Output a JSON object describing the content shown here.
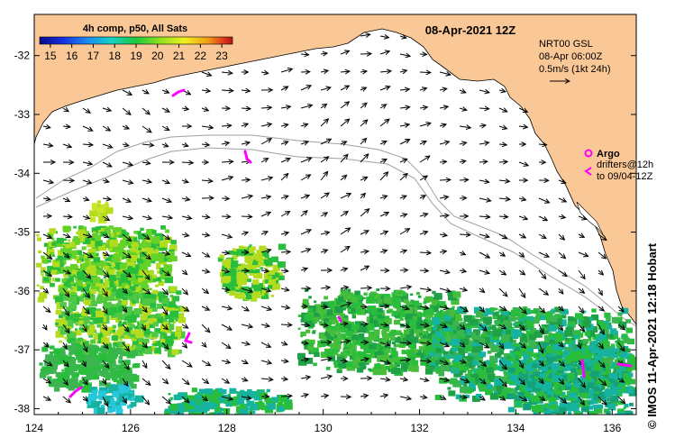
{
  "header": {
    "date_label": "08-Apr-2021 12Z"
  },
  "colorbar": {
    "title": "4h comp, p50, All Sats",
    "ticks": [
      "15",
      "16",
      "17",
      "18",
      "19",
      "20",
      "21",
      "22",
      "23"
    ],
    "range": [
      14.5,
      23.5
    ],
    "colors": [
      "#0a0a8c",
      "#1530e0",
      "#1c8cf0",
      "#16d2c8",
      "#1ec83c",
      "#8ce11e",
      "#f0f01e",
      "#f0a014",
      "#e6461e",
      "#b41414"
    ]
  },
  "current_legend": {
    "model": "NRT00 GSL",
    "time": "08-Apr 06:00Z",
    "scale": "0.5m/s (1kt 24h)"
  },
  "argo_legend": {
    "label": "Argo",
    "drifters_line1": "drifters@12h",
    "drifters_line2": "to 09/04-12Z",
    "color": "#ff00ff"
  },
  "credit": "© IMOS 11-Apr-2021 12:18 Hobart",
  "axes": {
    "lon_ticks": [
      "124",
      "126",
      "128",
      "130",
      "132",
      "134",
      "136"
    ],
    "lat_ticks": [
      "-32",
      "-33",
      "-34",
      "-35",
      "-36",
      "-37",
      "-38"
    ],
    "lon_range": [
      124,
      136.5
    ],
    "lat_range": [
      -31.3,
      -38.1
    ]
  },
  "colors": {
    "land": "#fac896",
    "sea": "#ffffff",
    "isobath": "#a0a0a0",
    "sst_low": "#16b4a0",
    "sst_mid": "#28be3c",
    "sst_high": "#b4dc1e"
  }
}
